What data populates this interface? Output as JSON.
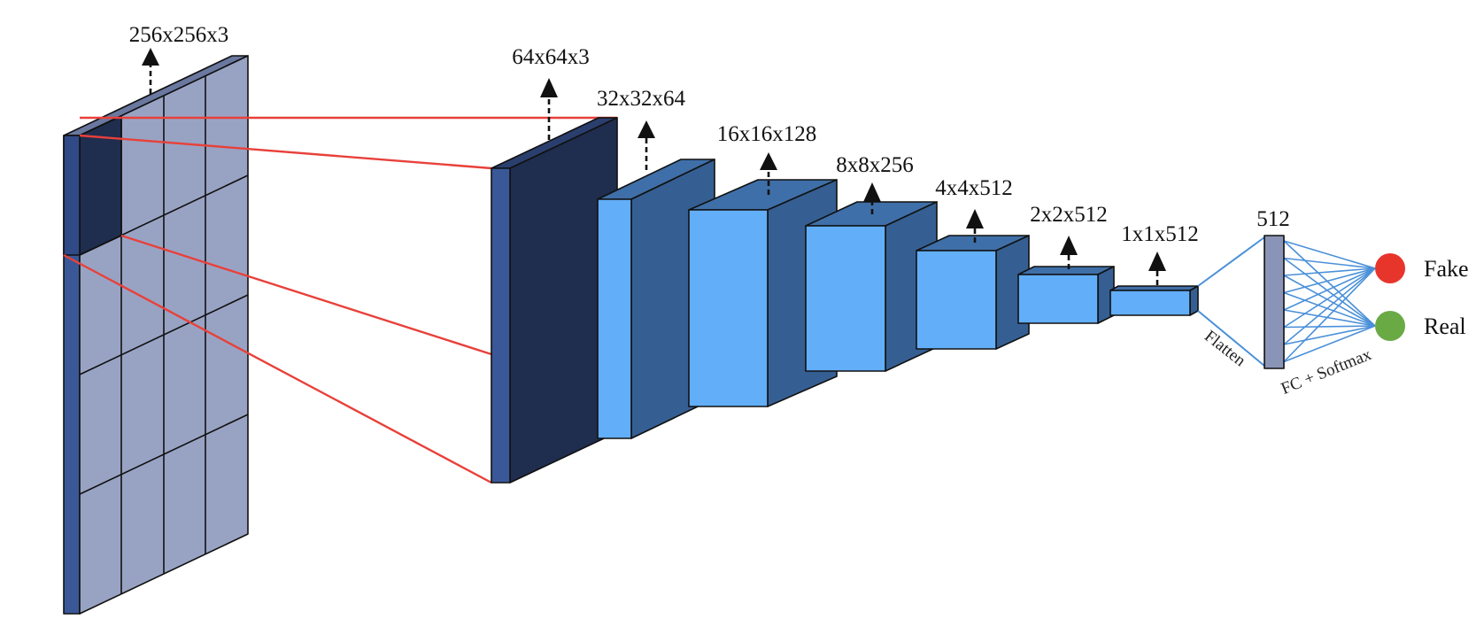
{
  "colors": {
    "input_face": "#98a3c4",
    "input_side": "#3a5898",
    "input_top": "#6a78a0",
    "patch_dark": "#1f2d4e",
    "block_front": "#62aef8",
    "block_side": "#355f92",
    "block_top": "#3f6fa8",
    "red_line": "#e8413a",
    "connection": "#4a90d9",
    "fake": "#e8352c",
    "real": "#6aaa45"
  },
  "input": {
    "label": "256x256x3"
  },
  "layers": [
    {
      "id": "64",
      "label": "64x64x3"
    },
    {
      "id": "32",
      "label": "32x32x64"
    },
    {
      "id": "16",
      "label": "16x16x128"
    },
    {
      "id": "8",
      "label": "8x8x256"
    },
    {
      "id": "4",
      "label": "4x4x512"
    },
    {
      "id": "2",
      "label": "2x2x512"
    },
    {
      "id": "1",
      "label": "1x1x512"
    }
  ],
  "flatten": {
    "label": "Flatten"
  },
  "fc": {
    "label": "512",
    "caption": "FC + Softmax"
  },
  "outputs": [
    {
      "label": "Fake",
      "color": "#e8352c"
    },
    {
      "label": "Real",
      "color": "#6aaa45"
    }
  ]
}
